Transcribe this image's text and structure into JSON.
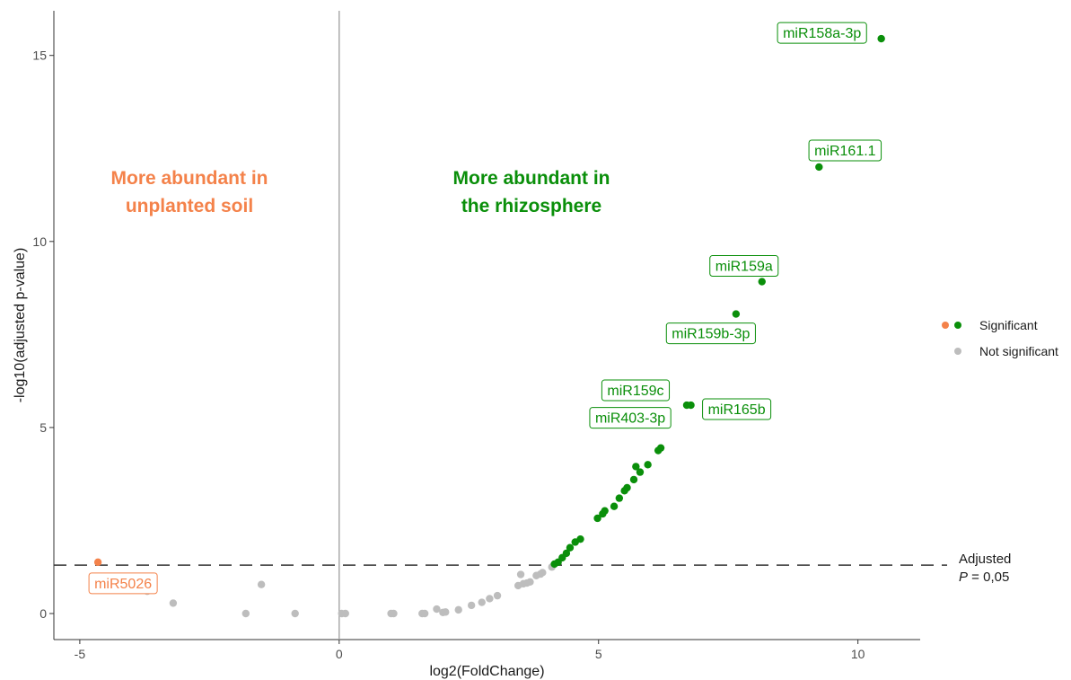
{
  "colors": {
    "up": "#0a8f0a",
    "down": "#f4824a",
    "ns": "#bdbdbd",
    "region_up": "#0a8f0a",
    "region_down": "#f4824a"
  },
  "chart_data": {
    "type": "scatter",
    "title": "",
    "xlabel": "log2(FoldChange)",
    "ylabel": "-log10(adjusted p-value)",
    "xlim": [
      -5.5,
      11.2
    ],
    "ylim": [
      -0.7,
      16.2
    ],
    "x_ticks": [
      -5,
      0,
      5,
      10
    ],
    "y_ticks": [
      0,
      5,
      10,
      15
    ],
    "grid": false,
    "vline_x": 0,
    "threshold_y": 1.301,
    "threshold_label_line1": "Adjusted",
    "threshold_label_p": "P",
    "threshold_label_rest": " = 0,05",
    "region_labels": [
      {
        "side": "down",
        "lines": [
          "More abundant in",
          "unplanted soil"
        ]
      },
      {
        "side": "up",
        "lines": [
          "More abundant in",
          "the rhizosphere"
        ]
      }
    ],
    "legend": {
      "position": "right",
      "significant": "Significant",
      "not_significant": "Not significant"
    },
    "series": [
      {
        "category": "up",
        "points": [
          [
            10.45,
            15.45
          ],
          [
            9.25,
            12.0
          ],
          [
            8.15,
            8.92
          ],
          [
            7.65,
            8.05
          ],
          [
            6.7,
            5.6
          ],
          [
            6.78,
            5.6
          ],
          [
            6.2,
            4.45
          ],
          [
            6.15,
            4.38
          ],
          [
            5.95,
            4.0
          ],
          [
            5.8,
            3.8
          ],
          [
            5.72,
            3.95
          ],
          [
            5.68,
            3.6
          ],
          [
            5.55,
            3.38
          ],
          [
            5.5,
            3.3
          ],
          [
            5.4,
            3.1
          ],
          [
            5.3,
            2.88
          ],
          [
            5.12,
            2.76
          ],
          [
            5.08,
            2.68
          ],
          [
            4.98,
            2.56
          ],
          [
            4.65,
            2.0
          ],
          [
            4.55,
            1.92
          ],
          [
            4.45,
            1.77
          ],
          [
            4.38,
            1.62
          ],
          [
            4.3,
            1.5
          ],
          [
            4.22,
            1.38
          ],
          [
            4.15,
            1.33
          ]
        ]
      },
      {
        "category": "down",
        "points": [
          [
            -4.65,
            1.38
          ]
        ]
      },
      {
        "category": "ns",
        "points": [
          [
            -3.7,
            0.6
          ],
          [
            -3.2,
            0.28
          ],
          [
            -1.5,
            0.78
          ],
          [
            -1.8,
            0.0
          ],
          [
            -0.85,
            0.0
          ],
          [
            0.05,
            0.0
          ],
          [
            0.12,
            0.0
          ],
          [
            1.0,
            0.0
          ],
          [
            1.05,
            0.0
          ],
          [
            1.6,
            0.0
          ],
          [
            1.65,
            0.0
          ],
          [
            1.88,
            0.12
          ],
          [
            2.0,
            0.03
          ],
          [
            2.05,
            0.04
          ],
          [
            2.3,
            0.1
          ],
          [
            2.55,
            0.22
          ],
          [
            2.75,
            0.3
          ],
          [
            2.9,
            0.4
          ],
          [
            3.05,
            0.48
          ],
          [
            3.45,
            0.75
          ],
          [
            3.5,
            1.05
          ],
          [
            3.55,
            0.8
          ],
          [
            3.62,
            0.82
          ],
          [
            3.68,
            0.85
          ],
          [
            3.8,
            1.02
          ],
          [
            3.88,
            1.06
          ],
          [
            3.92,
            1.1
          ],
          [
            4.1,
            1.25
          ]
        ]
      }
    ],
    "labels": [
      {
        "text": "miR158a-3p",
        "x": 10.45,
        "y": 15.45
      },
      {
        "text": "miR161.1",
        "x": 9.25,
        "y": 12.0
      },
      {
        "text": "miR159a",
        "x": 8.15,
        "y": 8.92
      },
      {
        "text": "miR159b-3p",
        "x": 7.65,
        "y": 8.05
      },
      {
        "text": "miR159c",
        "x": 6.7,
        "y": 5.6
      },
      {
        "text": "miR165b",
        "x": 6.78,
        "y": 5.6
      },
      {
        "text": "miR403-3p",
        "x": 6.2,
        "y": 4.45
      },
      {
        "text": "miR5026",
        "x": -4.65,
        "y": 1.38
      }
    ]
  }
}
